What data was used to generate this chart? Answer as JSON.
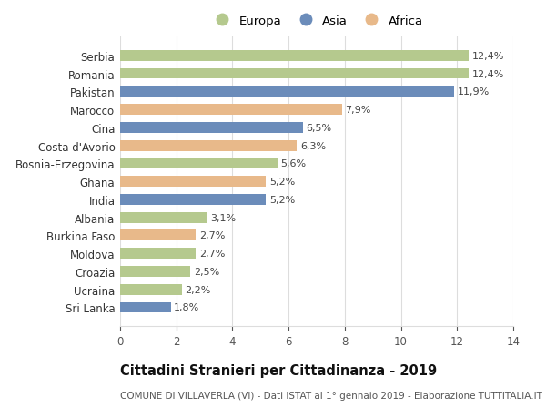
{
  "categories": [
    "Sri Lanka",
    "Ucraina",
    "Croazia",
    "Moldova",
    "Burkina Faso",
    "Albania",
    "India",
    "Ghana",
    "Bosnia-Erzegovina",
    "Costa d'Avorio",
    "Cina",
    "Marocco",
    "Pakistan",
    "Romania",
    "Serbia"
  ],
  "values": [
    1.8,
    2.2,
    2.5,
    2.7,
    2.7,
    3.1,
    5.2,
    5.2,
    5.6,
    6.3,
    6.5,
    7.9,
    11.9,
    12.4,
    12.4
  ],
  "continents": [
    "Asia",
    "Europa",
    "Europa",
    "Europa",
    "Africa",
    "Europa",
    "Asia",
    "Africa",
    "Europa",
    "Africa",
    "Asia",
    "Africa",
    "Asia",
    "Europa",
    "Europa"
  ],
  "labels": [
    "1,8%",
    "2,2%",
    "2,5%",
    "2,7%",
    "2,7%",
    "3,1%",
    "5,2%",
    "5,2%",
    "5,6%",
    "6,3%",
    "6,5%",
    "7,9%",
    "11,9%",
    "12,4%",
    "12,4%"
  ],
  "continent_colors": {
    "Europa": "#b5c98e",
    "Asia": "#6b8cba",
    "Africa": "#e8b98a"
  },
  "legend_order": [
    "Europa",
    "Asia",
    "Africa"
  ],
  "xlim": [
    0,
    14
  ],
  "xticks": [
    0,
    2,
    4,
    6,
    8,
    10,
    12,
    14
  ],
  "title_bold": "Cittadini Stranieri per Cittadinanza - 2019",
  "subtitle": "COMUNE DI VILLAVERLA (VI) - Dati ISTAT al 1° gennaio 2019 - Elaborazione TUTTITALIA.IT",
  "background_color": "#ffffff",
  "bar_height": 0.6,
  "label_fontsize": 8,
  "title_fontsize": 10.5,
  "subtitle_fontsize": 7.5,
  "tick_label_fontsize": 8.5,
  "legend_fontsize": 9.5,
  "grid_color": "#dddddd"
}
